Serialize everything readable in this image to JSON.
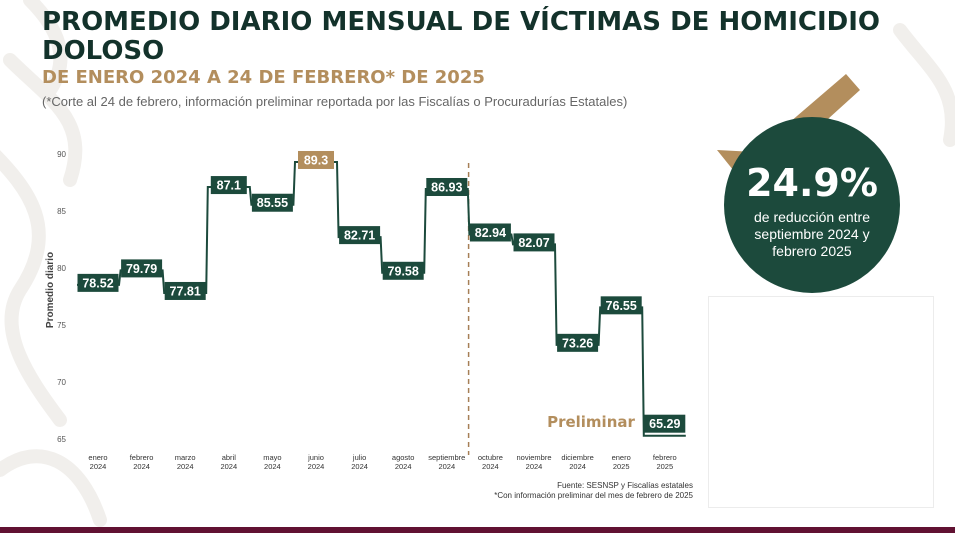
{
  "header": {
    "title": "PROMEDIO DIARIO MENSUAL DE VÍCTIMAS DE HOMICIDIO DOLOSO",
    "subtitle": "DE ENERO 2024 A 24 DE FEBRERO* DE 2025",
    "note": "(*Corte al 24 de febrero, información preliminar reportada por las Fiscalías o Procuradurías Estatales)"
  },
  "chart_data": {
    "type": "line",
    "step": true,
    "categories": [
      [
        "enero",
        "2024"
      ],
      [
        "febrero",
        "2024"
      ],
      [
        "marzo",
        "2024"
      ],
      [
        "abril",
        "2024"
      ],
      [
        "mayo",
        "2024"
      ],
      [
        "junio",
        "2024"
      ],
      [
        "julio",
        "2024"
      ],
      [
        "agosto",
        "2024"
      ],
      [
        "septiembre",
        "2024"
      ],
      [
        "octubre",
        "2024"
      ],
      [
        "noviembre",
        "2024"
      ],
      [
        "diciembre",
        "2024"
      ],
      [
        "enero",
        "2025"
      ],
      [
        "febrero",
        "2025"
      ]
    ],
    "values": [
      78.52,
      79.79,
      77.81,
      87.1,
      85.55,
      89.3,
      82.71,
      79.58,
      86.93,
      82.94,
      82.07,
      73.26,
      76.55,
      65.29
    ],
    "data_labels": [
      "78.52",
      "79.79",
      "77.81",
      "87.1",
      "85.55",
      "89.3",
      "82.71",
      "79.58",
      "86.93",
      "82.94",
      "82.07",
      "73.26",
      "76.55",
      "65.29"
    ],
    "highlight_index": 5,
    "ylabel": "Promedio diario",
    "ylim": [
      65,
      90
    ],
    "yticks": [
      "90",
      "85",
      "80",
      "75",
      "70",
      "65"
    ],
    "divider_after_index": 8,
    "preliminary_label": "Preliminar",
    "colors": {
      "line": "#1c4a3c",
      "label_bg": "#1c4a3c",
      "highlight_bg": "#b38e5d",
      "divider": "#a67f56",
      "preliminary": "#b38e5d"
    }
  },
  "highlight": {
    "value": "24.9%",
    "description": "de reducción entre septiembre 2024 y febrero 2025",
    "icon": "down-trend-arrow-icon",
    "colors": {
      "circle": "#1c4a3c",
      "arrow": "#b38e5d"
    }
  },
  "footer": {
    "source": "Fuente: SESNSP y Fiscalías estatales",
    "footnote": "*Con información preliminar del mes de febrero de 2025"
  }
}
